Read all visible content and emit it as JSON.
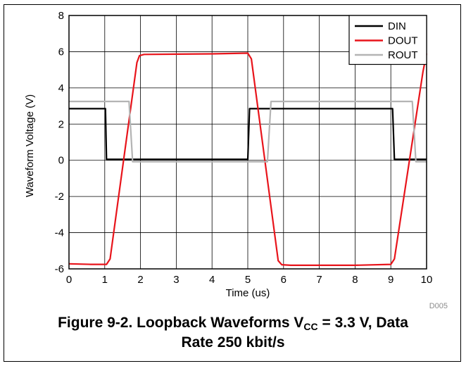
{
  "chart_data": {
    "type": "line",
    "title": "",
    "xlabel": "Time (us)",
    "ylabel": "Waveform Voltage (V)",
    "xlim": [
      0,
      10
    ],
    "ylim": [
      -6,
      8
    ],
    "xticks": [
      "0",
      "1",
      "2",
      "3",
      "4",
      "5",
      "6",
      "7",
      "8",
      "9",
      "10"
    ],
    "yticks": [
      "-6",
      "-4",
      "-2",
      "0",
      "2",
      "4",
      "6",
      "8"
    ],
    "grid": true,
    "legend_position": "top-right",
    "series": [
      {
        "name": "DIN",
        "color": "#000000",
        "x": [
          0,
          1.02,
          1.05,
          5.0,
          5.05,
          9.05,
          9.1,
          10
        ],
        "y": [
          2.85,
          2.85,
          0.05,
          0.05,
          2.85,
          2.85,
          0.05,
          0.05
        ]
      },
      {
        "name": "DOUT",
        "color": "#e8141b",
        "x": [
          0,
          0.6,
          1.05,
          1.15,
          1.9,
          1.97,
          2.1,
          4.0,
          5.0,
          5.1,
          5.85,
          5.95,
          6.2,
          8.0,
          9.0,
          9.1,
          9.9,
          10
        ],
        "y": [
          -5.72,
          -5.75,
          -5.75,
          -5.45,
          5.4,
          5.78,
          5.85,
          5.88,
          5.92,
          5.6,
          -5.55,
          -5.77,
          -5.8,
          -5.8,
          -5.75,
          -5.45,
          4.9,
          5.9
        ]
      },
      {
        "name": "ROUT",
        "color": "#b4b4b4",
        "x": [
          0,
          1.68,
          1.78,
          5.55,
          5.65,
          9.6,
          9.7,
          10
        ],
        "y": [
          3.25,
          3.25,
          -0.08,
          -0.08,
          3.25,
          3.25,
          -0.08,
          -0.08
        ]
      }
    ],
    "annotation": "D005"
  },
  "caption": {
    "line1_pre": "Figure 9-2. Loopback Waveforms V",
    "line1_sub": "CC",
    "line1_post": " = 3.3 V, Data",
    "line2": "Rate 250 kbit/s"
  }
}
